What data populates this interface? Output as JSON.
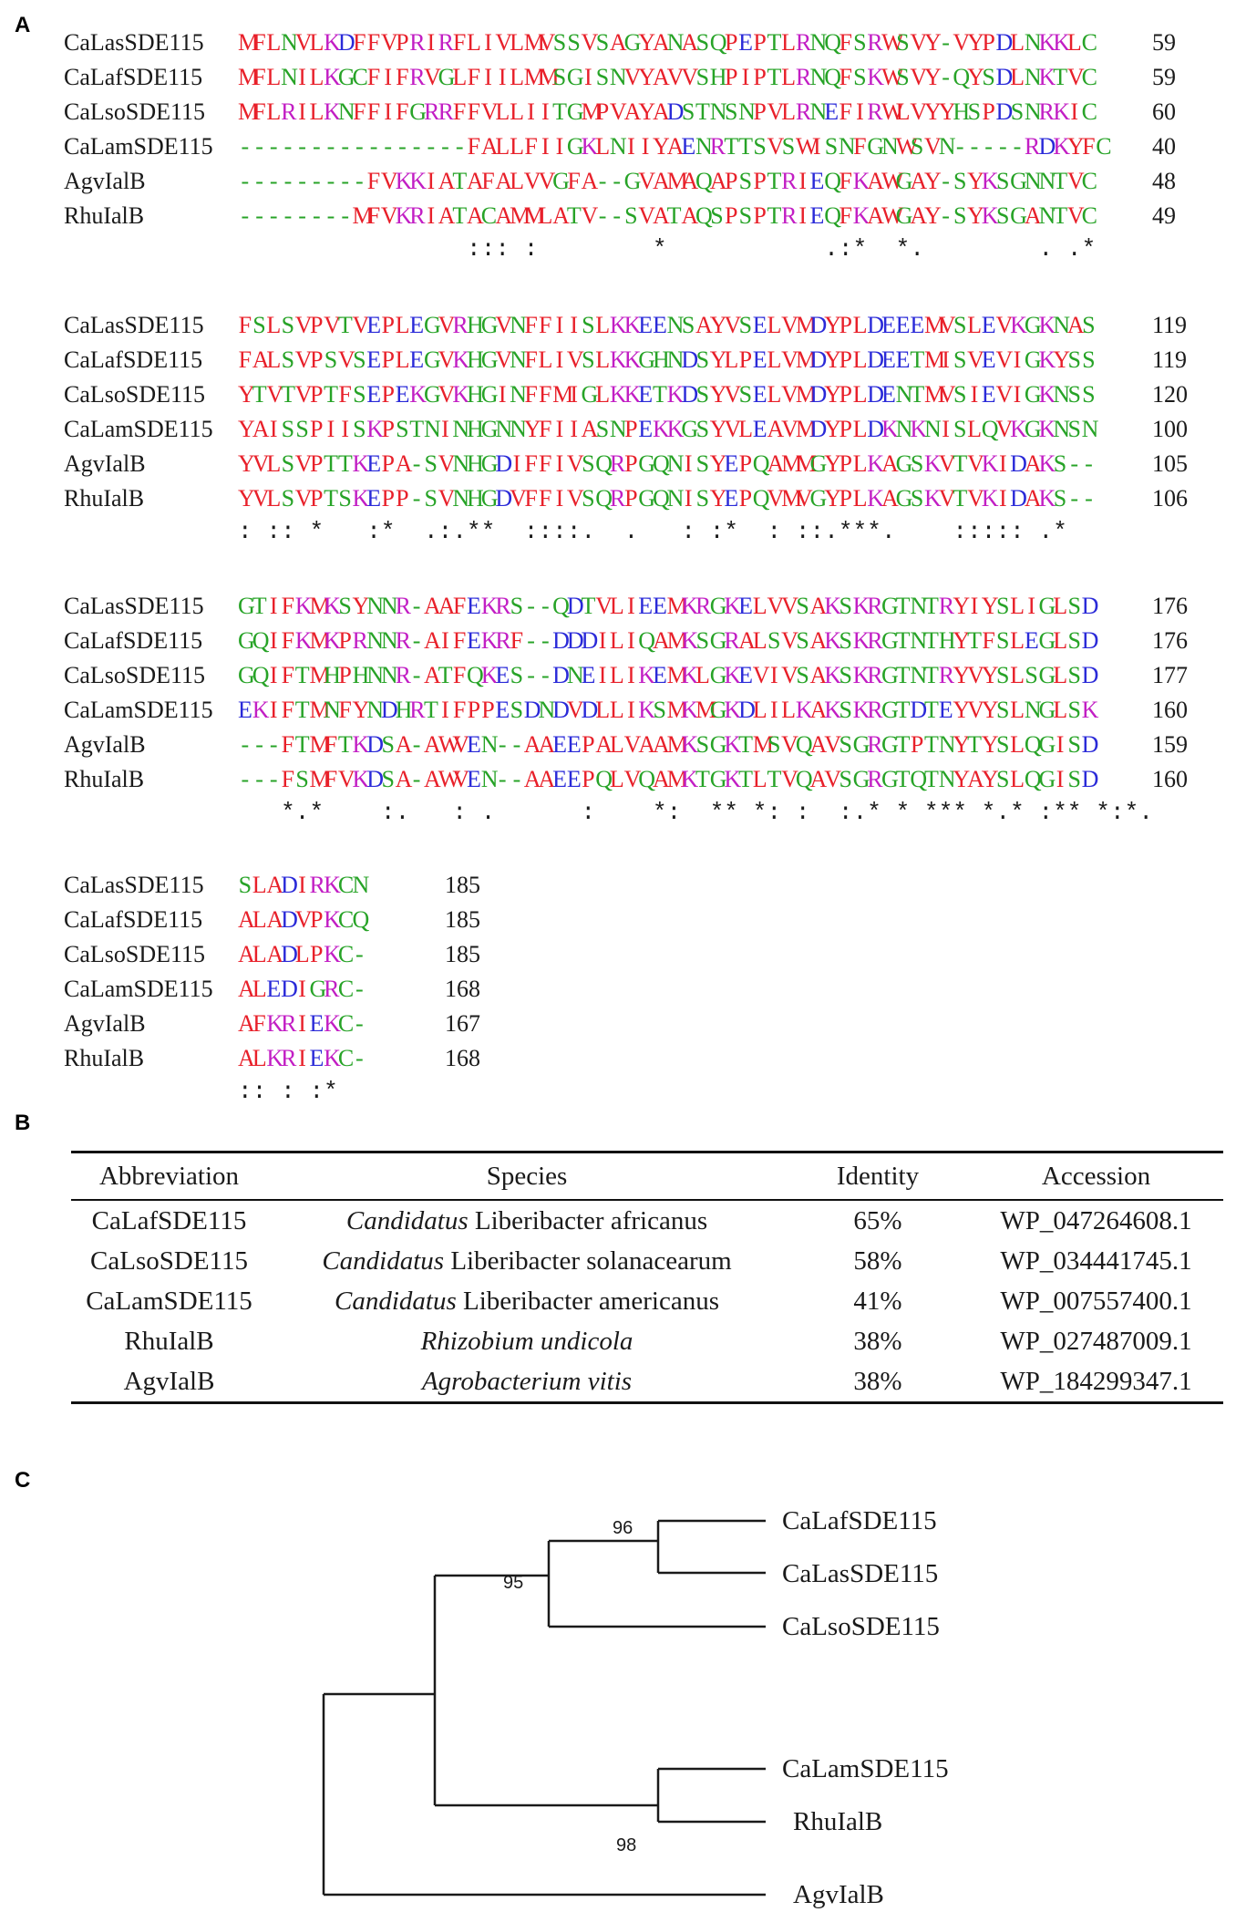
{
  "figure": {
    "panel_a_label": "A",
    "panel_b_label": "B",
    "panel_c_label": "C"
  },
  "alignment": {
    "blocks": [
      {
        "rows": [
          {
            "name": "CaLasSDE115",
            "seq": "MFLNVLKDFFVPRIRFLIVLMVSSVSAGYANASQPEPTLRNQFSRWSVY-VYPDLNKKLC",
            "end": "59"
          },
          {
            "name": "CaLafSDE115",
            "seq": "MFLNILKGCFIFRVGLFIILMMSGISNVYAVVSHPIPTLRNQFSKWSVY-QYSDLNKTVC",
            "end": "59"
          },
          {
            "name": "CaLsoSDE115",
            "seq": "MFLRILKNFFIFGRRFFVLLIITGMPVAYADSTNSNPVLRNEFIRWLVYYHSPDSNRKIC",
            "end": "60"
          },
          {
            "name": "CaLamSDE115",
            "seq": "----------------FALLFIIGKLNIIYAENRTTSVSWISNFGNWSVN-----RDKYFC",
            "end": "40"
          },
          {
            "name": "AgvIalB",
            "seq": "---------FVKKIATAFALVVGFA--GVAMAQAPSPTRIEQFKAWGAY-SYKSGNNTVC",
            "end": "48"
          },
          {
            "name": "RhuIalB",
            "seq": "--------MFVKRIATACAMMLATV--SVATAQSPSPTRIEQFKAWGAY-SYKSGANTVC",
            "end": "49"
          }
        ],
        "consensus": "                ::: :        *           .:*  *.        . .*"
      },
      {
        "rows": [
          {
            "name": "CaLasSDE115",
            "seq": "FSLSVPVTVEPLEGVRHGVNFFIISLKKEENSAYVSELVMDYPLDEEEMVSLEVKGKNAS",
            "end": "119"
          },
          {
            "name": "CaLafSDE115",
            "seq": "FALSVPSVSEPLEGVKHGVNFLIVSLKKGHNDSYLPELVMDYPLDEETMISVEVIGKYSS",
            "end": "119"
          },
          {
            "name": "CaLsoSDE115",
            "seq": "YTVTVPTFSEPEKGVKHGINFFMIGLKKETKDSYVSELVMDYPLDENTMVSIEVIGKNSS",
            "end": "120"
          },
          {
            "name": "CaLamSDE115",
            "seq": "YAISSPIISKPSTNINHGNNYFIIASNPEKKGSYVLEAVMDYPLDKNKNISLQVKGKNSN",
            "end": "100"
          },
          {
            "name": "AgvIalB",
            "seq": "YVLSVPTTKEPA-SVNHGDIFFIVSQRPGQNISYEPQAMMGYPLKAGSKVTVKIDAKS--",
            "end": "105"
          },
          {
            "name": "RhuIalB",
            "seq": "YVLSVPTSKEPP-SVNHGDVFFIVSQRPGQNISYEPQVMVGYPLKAGSKVTVKIDAKS--",
            "end": "106"
          }
        ],
        "consensus": ": :: *   :*  .:.**  ::::.  .   : :*  : ::.***.    ::::: .*  "
      },
      {
        "rows": [
          {
            "name": "CaLasSDE115",
            "seq": "GTIFKMKSYNNR-AAFEKRS--QDTVLIEEMKRGKELVVSAKSKRGTNTRYIYSLIGLSD",
            "end": "176"
          },
          {
            "name": "CaLafSDE115",
            "seq": "GQIFKMKPRNNR-AIFEKRF--DDDILIQAMKSGRALSVSAKSKRGTNTHYTFSLEGLSD",
            "end": "176"
          },
          {
            "name": "CaLsoSDE115",
            "seq": "GQIFTMHPHNNR-ATFQKES--DNEILIKEMKLGKEVIVSAKSKRGTNTRYVYSLSGLSD",
            "end": "177"
          },
          {
            "name": "CaLamSDE115",
            "seq": "EKIFTMNFYNDHRTIFPPESDNDVDLLIKSMKMGKDLILKAKSKRGTDTEYVYSLNGLSK",
            "end": "160"
          },
          {
            "name": "AgvIalB",
            "seq": "---FTMFTKDSA-AWVEN--AAEEPALVAAMKSGKTMSVQAVSGRGTPTNYTYSLQGISD",
            "end": "159"
          },
          {
            "name": "RhuIalB",
            "seq": "---FSMFVKDSA-AWVEN--AAEEPQLVQAMKTGKTLTVQAVSGRGTQTNYAYSLQGISD",
            "end": "160"
          }
        ],
        "consensus": "   *.*    :.   : .      :    *:  ** *: :  :.* * *** *.* :** *:*."
      },
      {
        "rows": [
          {
            "name": "CaLasSDE115",
            "seq": "SLADIRKCN",
            "end": "185"
          },
          {
            "name": "CaLafSDE115",
            "seq": "ALADVPKCQ",
            "end": "185"
          },
          {
            "name": "CaLsoSDE115",
            "seq": "ALADLPKC-",
            "end": "185"
          },
          {
            "name": "CaLamSDE115",
            "seq": "ALEDIGRC-",
            "end": "168"
          },
          {
            "name": "AgvIalB",
            "seq": "AFKRIEKC-",
            "end": "167"
          },
          {
            "name": "RhuIalB",
            "seq": "ALKRIEKC-",
            "end": "168"
          }
        ],
        "consensus": ":: : :*"
      }
    ],
    "color_groups": {
      "red": "AVFPMILWY",
      "blue": "DE",
      "magenta": "RK",
      "green": "STYHCNGQ",
      "colors": {
        "red": "#e8202a",
        "blue": "#2a2ad8",
        "magenta": "#c21ec4",
        "green": "#27a327",
        "gap": "#27a327"
      }
    }
  },
  "table": {
    "headers": [
      "Abbreviation",
      "Species",
      "Identity",
      "Accession"
    ],
    "rows": [
      {
        "abbr": "CaLafSDE115",
        "genus_italic": "Candidatus",
        "species_rest": " Liberibacter africanus",
        "identity": "65%",
        "accession": "WP_047264608.1"
      },
      {
        "abbr": "CaLsoSDE115",
        "genus_italic": "Candidatus",
        "species_rest": " Liberibacter solanacearum",
        "identity": "58%",
        "accession": "WP_034441745.1"
      },
      {
        "abbr": "CaLamSDE115",
        "genus_italic": "Candidatus",
        "species_rest": " Liberibacter americanus",
        "identity": "41%",
        "accession": "WP_007557400.1"
      },
      {
        "abbr": "RhuIalB",
        "genus_italic": "Rhizobium undicola",
        "species_rest": "",
        "identity": "38%",
        "accession": "WP_027487009.1"
      },
      {
        "abbr": "AgvIalB",
        "genus_italic": "Agrobacterium vitis",
        "species_rest": "",
        "identity": "38%",
        "accession": "WP_184299347.1"
      }
    ]
  },
  "tree": {
    "leaves": [
      "CaLafSDE115",
      "CaLasSDE115",
      "CaLsoSDE115",
      "CaLamSDE115",
      "RhuIalB",
      "AgvIalB"
    ],
    "bootstrap": {
      "lafsas": "96",
      "liberibacter": "95",
      "lam_rhu": "98"
    }
  }
}
